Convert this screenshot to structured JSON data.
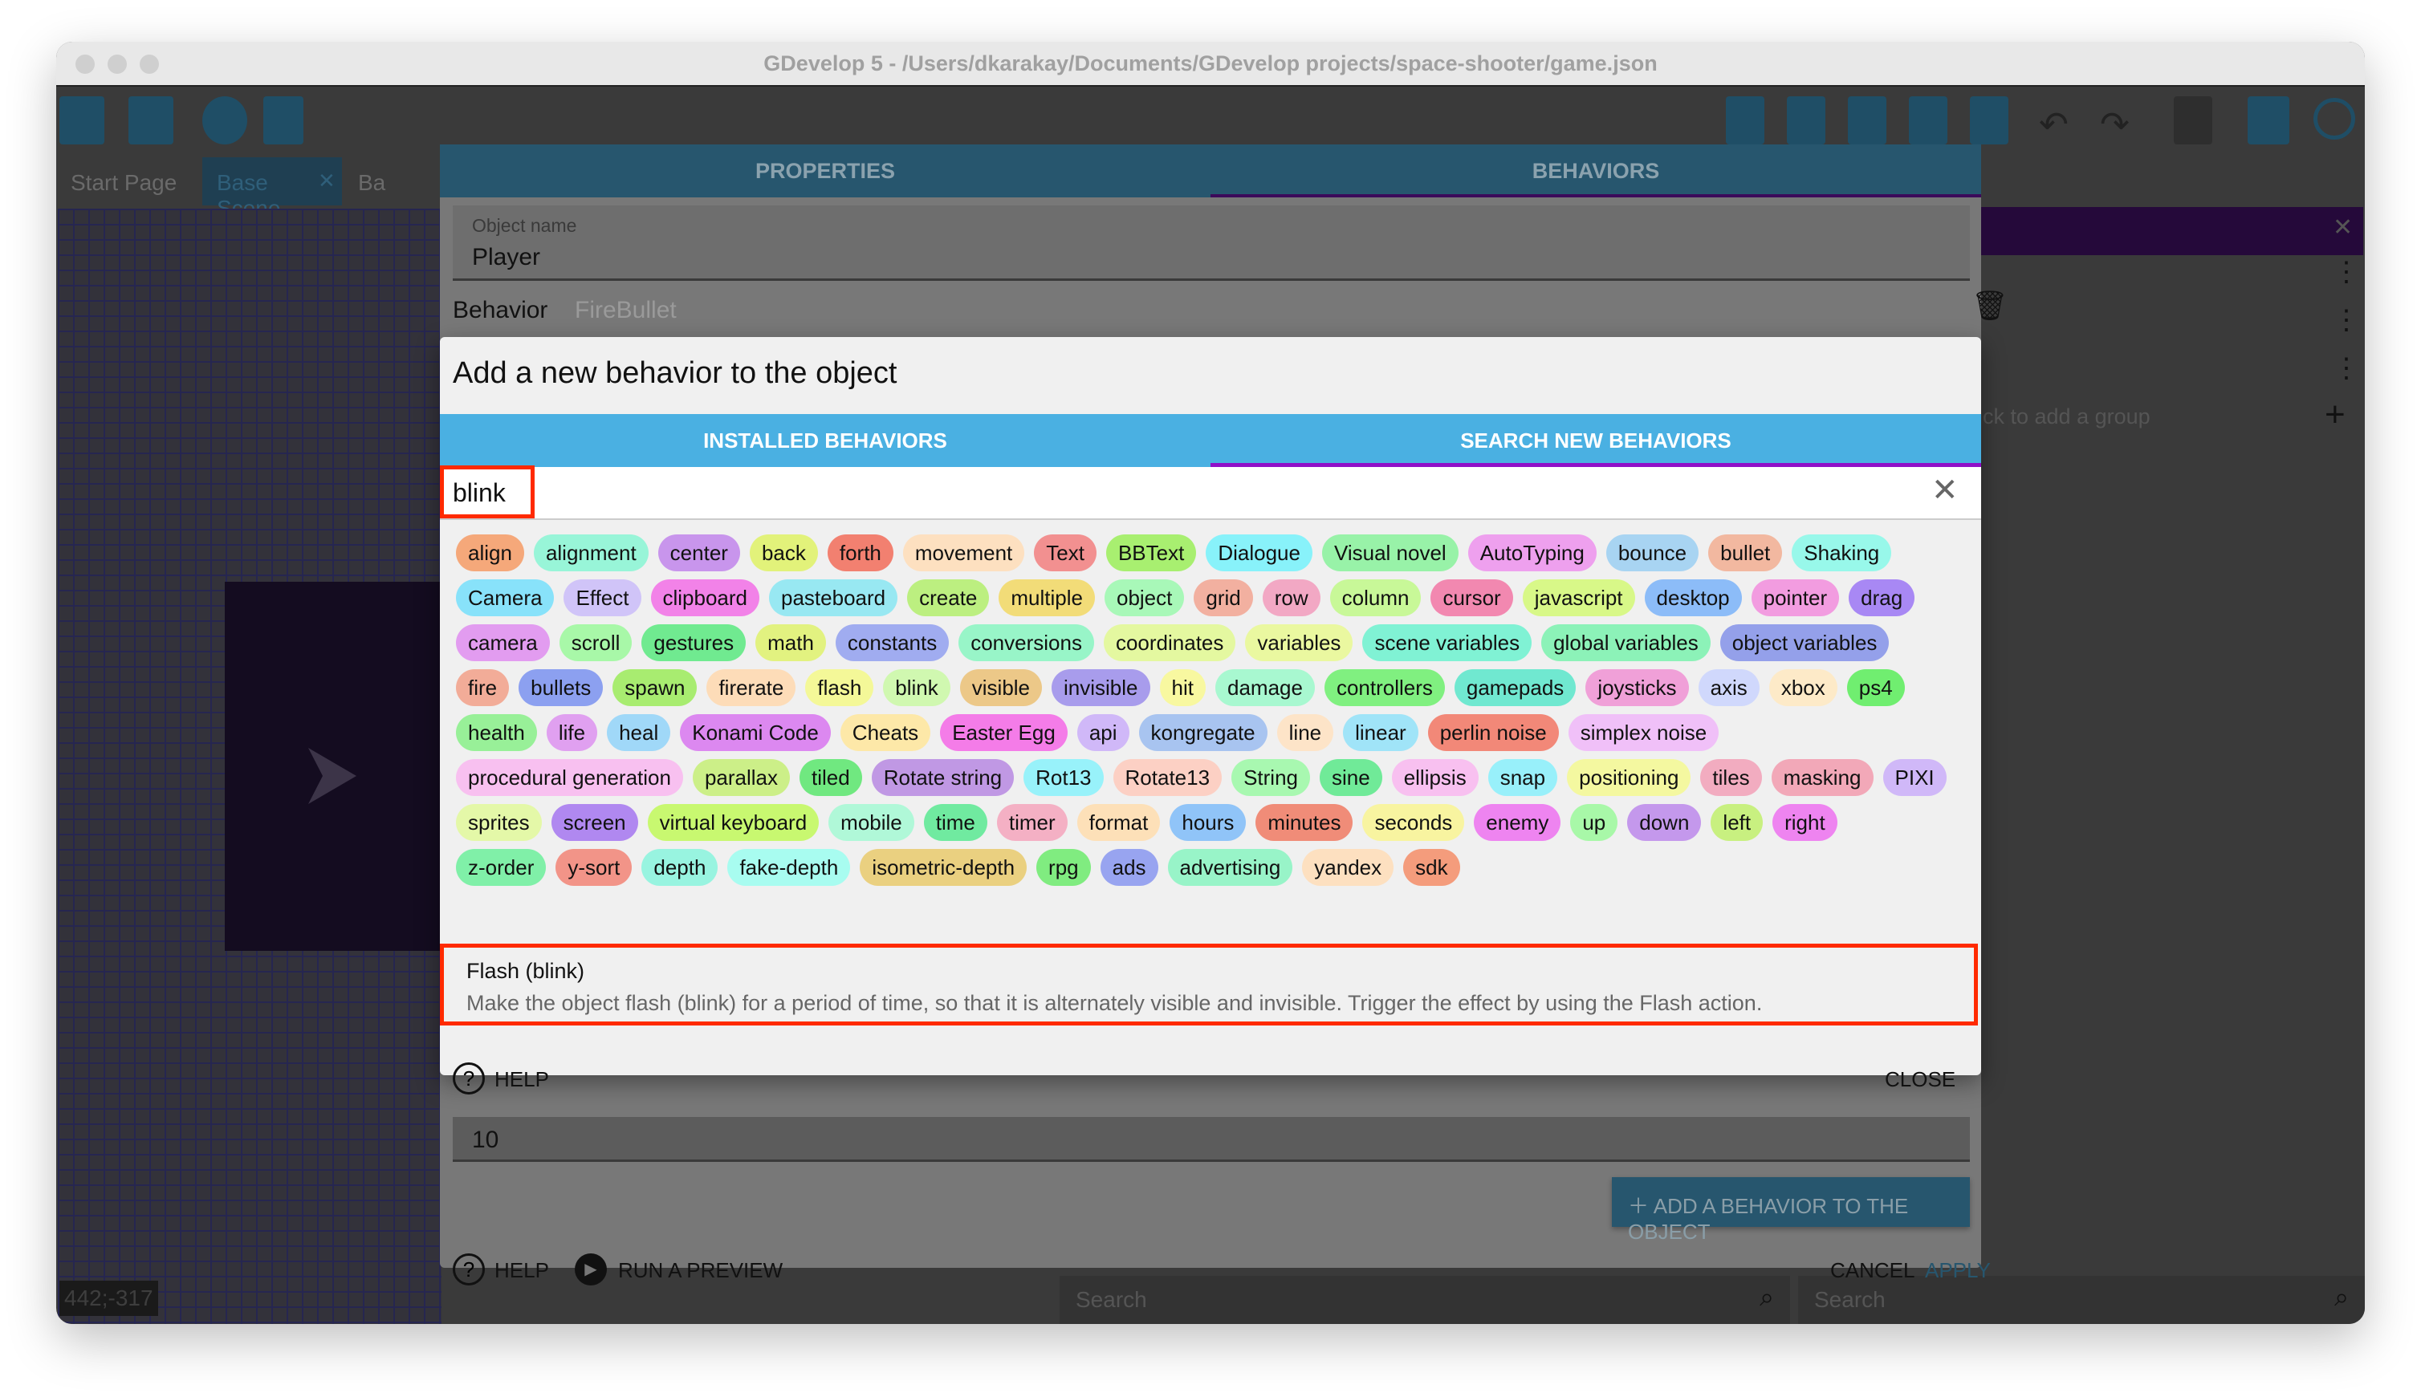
{
  "window": {
    "title": "GDevelop 5 - /Users/dkarakay/Documents/GDevelop projects/space-shooter/game.json"
  },
  "editor_tabs": [
    "Start Page",
    "Base Scene",
    "Ba"
  ],
  "coordinates": "442;-317",
  "right_panel": {
    "hint": "ck to add a group"
  },
  "bottom": {
    "search_placeholder": "Search",
    "search2_placeholder": "Search"
  },
  "object_dialog": {
    "tabs": [
      "PROPERTIES",
      "BEHAVIORS"
    ],
    "active_tab": "BEHAVIORS",
    "object_name_label": "Object name",
    "object_name": "Player",
    "behavior_label": "Behavior",
    "behavior_name": "FireBullet",
    "field_value": "10",
    "add_behavior_button": "ADD A BEHAVIOR TO THE OBJECT",
    "help": "HELP",
    "run_preview": "RUN A PREVIEW",
    "cancel": "CANCEL",
    "apply": "APPLY"
  },
  "behavior_dialog": {
    "title": "Add a new behavior to the object",
    "tabs": [
      "INSTALLED BEHAVIORS",
      "SEARCH NEW BEHAVIORS"
    ],
    "active_tab": "SEARCH NEW BEHAVIORS",
    "search_value": "blink",
    "tag_rows": [
      [
        [
          "align",
          "#f5a87a"
        ],
        [
          "alignment",
          "#98f5d8"
        ],
        [
          "center",
          "#c895ec"
        ],
        [
          "back",
          "#e2f27a"
        ],
        [
          "forth",
          "#f28070"
        ],
        [
          "movement",
          "#fde0c0"
        ],
        [
          "Text",
          "#f29090"
        ],
        [
          "BBText",
          "#a8ef70"
        ],
        [
          "Dialogue",
          "#88f2fa"
        ],
        [
          "Visual novel",
          "#98f2a8"
        ],
        [
          "AutoTyping",
          "#eea0ee"
        ],
        [
          "bounce",
          "#a8d4f2"
        ],
        [
          "bullet",
          "#f2b8a0"
        ],
        [
          "Shaking",
          "#98f8ea"
        ]
      ],
      [
        [
          "Camera",
          "#88e2fa"
        ],
        [
          "Effect",
          "#d0c4f8"
        ],
        [
          "clipboard",
          "#f282e8"
        ],
        [
          "pasteboard",
          "#98e8f2"
        ],
        [
          "create",
          "#bcef80"
        ],
        [
          "multiple",
          "#f2dc78"
        ],
        [
          "object",
          "#a8f8b8"
        ],
        [
          "grid",
          "#f2b0a0"
        ],
        [
          "row",
          "#f2a8c4"
        ],
        [
          "column",
          "#c8f898"
        ],
        [
          "cursor",
          "#f288b0"
        ],
        [
          "javascript",
          "#d8f888"
        ],
        [
          "desktop",
          "#8cbcf8"
        ],
        [
          "pointer",
          "#f29ce0"
        ],
        [
          "drag",
          "#a888f4"
        ]
      ],
      [
        [
          "camera",
          "#e29cf0"
        ],
        [
          "scroll",
          "#a8f8a8"
        ],
        [
          "gestures",
          "#70ea90"
        ],
        [
          "math",
          "#e2f280"
        ],
        [
          "constants",
          "#a0acf0"
        ],
        [
          "conversions",
          "#98f5c8"
        ],
        [
          "coordinates",
          "#e4f8a0"
        ],
        [
          "variables",
          "#eaf8a0"
        ],
        [
          "scene variables",
          "#80f2d4"
        ],
        [
          "global variables",
          "#8cf2b8"
        ],
        [
          "object variables",
          "#94a0ea"
        ]
      ],
      [
        [
          "fire",
          "#f2ac98"
        ],
        [
          "bullets",
          "#8ca0f0"
        ],
        [
          "spawn",
          "#a8ec70"
        ],
        [
          "firerate",
          "#fddcb8"
        ],
        [
          "flash",
          "#f4f898"
        ],
        [
          "blink",
          "#d0f8b0"
        ],
        [
          "visible",
          "#ecc888"
        ],
        [
          "invisible",
          "#a89cec"
        ],
        [
          "hit",
          "#f8f8a0"
        ],
        [
          "damage",
          "#a8f8d0"
        ],
        [
          "controllers",
          "#80f080"
        ],
        [
          "gamepads",
          "#70e8d0"
        ],
        [
          "joysticks",
          "#f0a0d8"
        ],
        [
          "axis",
          "#d0d8fc"
        ],
        [
          "xbox",
          "#fdeac8"
        ],
        [
          "ps4",
          "#70ee70"
        ]
      ],
      [
        [
          "health",
          "#98f098"
        ],
        [
          "life",
          "#e0a0f0"
        ],
        [
          "heal",
          "#a0d8f8"
        ],
        [
          "Konami Code",
          "#dc88f0"
        ],
        [
          "Cheats",
          "#fde8a8"
        ],
        [
          "Easter Egg",
          "#f47ce8"
        ],
        [
          "api",
          "#d0b8f8"
        ],
        [
          "kongregate",
          "#a8c4f0"
        ],
        [
          "line",
          "#fde4c8"
        ],
        [
          "linear",
          "#a0e4f8"
        ],
        [
          "perlin noise",
          "#f28878"
        ],
        [
          "simplex noise",
          "#f0c0f8"
        ]
      ],
      [
        [
          "procedural generation",
          "#f8c0f0"
        ],
        [
          "parallax",
          "#ccef88"
        ],
        [
          "tiled",
          "#70e880"
        ],
        [
          "Rotate string",
          "#c098e4"
        ],
        [
          "Rot13",
          "#98f2fa"
        ],
        [
          "Rotate13",
          "#fcd0c4"
        ],
        [
          "String",
          "#a8f8b0"
        ],
        [
          "sine",
          "#70ea98"
        ],
        [
          "ellipsis",
          "#f8c0f0"
        ],
        [
          "snap",
          "#98f0fa"
        ],
        [
          "positioning",
          "#f4f8a0"
        ],
        [
          "tiles",
          "#f2acc0"
        ],
        [
          "masking",
          "#f2a8b8"
        ],
        [
          "PIXI",
          "#d0b8f8"
        ]
      ],
      [
        [
          "sprites",
          "#e4f8a8"
        ],
        [
          "screen",
          "#b088f0"
        ],
        [
          "virtual keyboard",
          "#c8f870"
        ],
        [
          "mobile",
          "#b0f8d8"
        ],
        [
          "time",
          "#70eaa0"
        ],
        [
          "timer",
          "#f4b0c4"
        ],
        [
          "format",
          "#fde0b8"
        ],
        [
          "hours",
          "#90c4f8"
        ],
        [
          "minutes",
          "#f08c78"
        ],
        [
          "seconds",
          "#f8f4a0"
        ],
        [
          "enemy",
          "#ee84f0"
        ],
        [
          "up",
          "#a8f8a8"
        ],
        [
          "down",
          "#c498ec"
        ],
        [
          "left",
          "#c8f080"
        ],
        [
          "right",
          "#ee84f0"
        ]
      ],
      [
        [
          "z-order",
          "#80f0a8"
        ],
        [
          "y-sort",
          "#f29488"
        ],
        [
          "depth",
          "#98f4e0"
        ],
        [
          "fake-depth",
          "#a8fcf0"
        ],
        [
          "isometric-depth",
          "#ead080"
        ],
        [
          "rpg",
          "#80ec80"
        ],
        [
          "ads",
          "#98a4f0"
        ],
        [
          "advertising",
          "#98f4c8"
        ],
        [
          "yandex",
          "#fde0c0"
        ],
        [
          "sdk",
          "#f49c7c"
        ]
      ]
    ],
    "result": {
      "name": "Flash (blink)",
      "description": "Make the object flash (blink) for a period of time, so that it is alternately visible and invisible. Trigger the effect by using the Flash action."
    },
    "help": "HELP",
    "close": "CLOSE"
  },
  "colors": {
    "tab_bar": "#4ab0e2",
    "tab_indicator": "#9010c8",
    "highlight": "#ff2a00",
    "dialog_header": "#27566e"
  }
}
